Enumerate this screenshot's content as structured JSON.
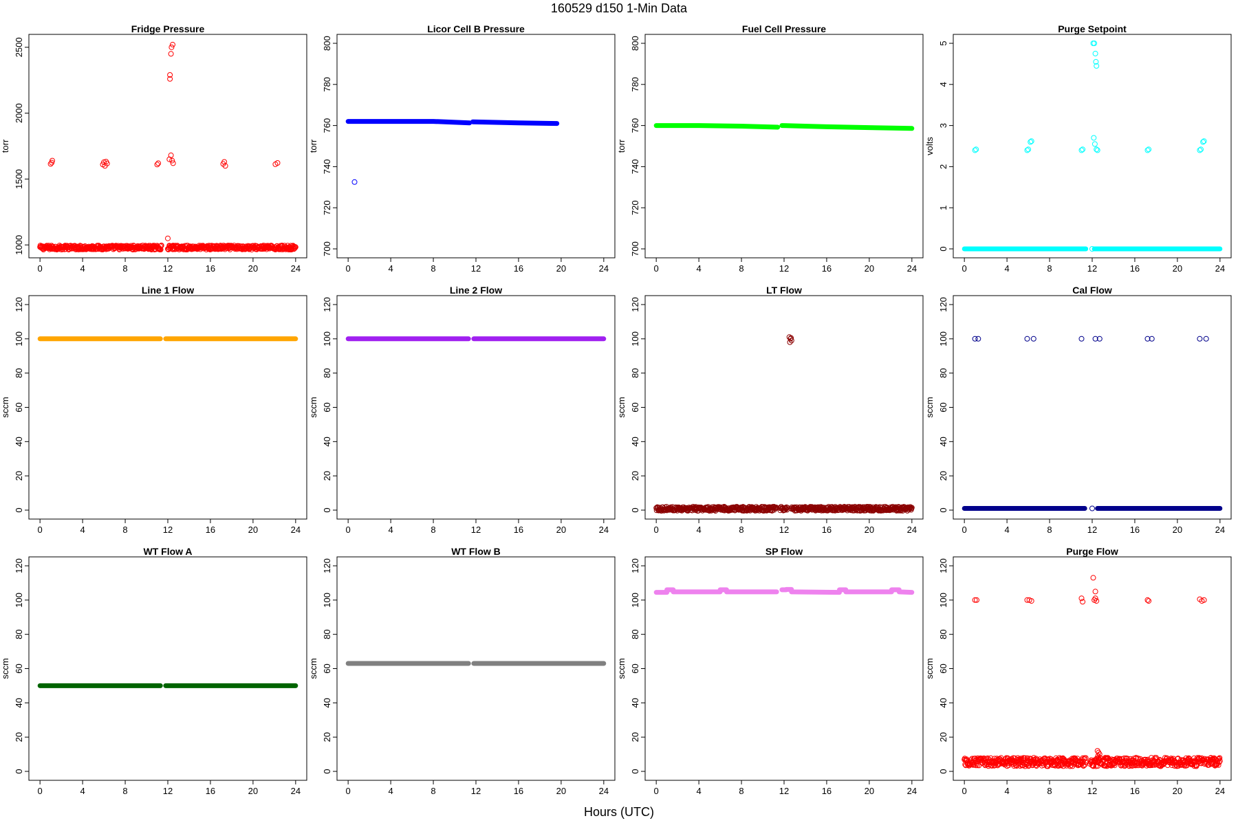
{
  "figure": {
    "title": "160529   d150   1-Min Data",
    "xlabel": "Hours (UTC)"
  },
  "chart_data": [
    {
      "type": "scatter",
      "title": "Fridge Pressure",
      "xlabel": "",
      "ylabel": "torr",
      "xlim": [
        0,
        24
      ],
      "ylim": [
        970,
        2530
      ],
      "xticks": [
        0,
        4,
        8,
        12,
        16,
        20,
        24
      ],
      "yticks": [
        1000,
        1500,
        2000,
        2500
      ],
      "series": [
        {
          "color": "#ff0000",
          "style": "open",
          "baseline": {
            "segments": [
              [
                0,
                11.4
              ],
              [
                12.0,
                24
              ]
            ],
            "y": 980,
            "jitter": 16
          },
          "points": [
            [
              1.0,
              1615
            ],
            [
              1.1,
              1625
            ],
            [
              1.15,
              1640
            ],
            [
              5.9,
              1610
            ],
            [
              6.0,
              1628
            ],
            [
              6.1,
              1600
            ],
            [
              6.2,
              1632
            ],
            [
              6.3,
              1618
            ],
            [
              11.0,
              1610
            ],
            [
              11.1,
              1620
            ],
            [
              12.15,
              1650
            ],
            [
              12.2,
              2260
            ],
            [
              12.2,
              2290
            ],
            [
              12.3,
              2450
            ],
            [
              12.35,
              2500
            ],
            [
              12.45,
              2520
            ],
            [
              12.3,
              1680
            ],
            [
              12.4,
              1640
            ],
            [
              12.5,
              1620
            ],
            [
              12.0,
              1050
            ],
            [
              17.2,
              1615
            ],
            [
              17.3,
              1630
            ],
            [
              17.4,
              1600
            ],
            [
              22.1,
              1612
            ],
            [
              22.3,
              1622
            ]
          ]
        }
      ]
    },
    {
      "type": "scatter",
      "title": "Licor Cell B Pressure",
      "xlabel": "",
      "ylabel": "torr",
      "xlim": [
        0,
        24
      ],
      "ylim": [
        700,
        800
      ],
      "xticks": [
        0,
        4,
        8,
        12,
        16,
        20,
        24
      ],
      "yticks": [
        700,
        720,
        740,
        760,
        780,
        800
      ],
      "series": [
        {
          "color": "#0000ff",
          "style": "line",
          "lines": [
            {
              "x": [
                0,
                4,
                8,
                11.4
              ],
              "y": [
                762,
                762,
                762,
                761.3
              ]
            },
            {
              "x": [
                11.7,
                16,
                19.6
              ],
              "y": [
                761.8,
                761.3,
                761
              ]
            }
          ],
          "points": [
            [
              0.6,
              732.5
            ]
          ]
        }
      ]
    },
    {
      "type": "scatter",
      "title": "Fuel Cell Pressure",
      "xlabel": "",
      "ylabel": "torr",
      "xlim": [
        0,
        24
      ],
      "ylim": [
        700,
        800
      ],
      "xticks": [
        0,
        4,
        8,
        12,
        16,
        20,
        24
      ],
      "yticks": [
        700,
        720,
        740,
        760,
        780,
        800
      ],
      "series": [
        {
          "color": "#00ff00",
          "style": "line",
          "lines": [
            {
              "x": [
                0,
                4,
                8,
                11.4
              ],
              "y": [
                760,
                760,
                759.7,
                759.2
              ]
            },
            {
              "x": [
                11.8,
                16,
                20,
                24
              ],
              "y": [
                760,
                759.4,
                759,
                758.6
              ]
            }
          ],
          "points": []
        }
      ]
    },
    {
      "type": "scatter",
      "title": "Purge Setpoint",
      "xlabel": "",
      "ylabel": "volts",
      "xlim": [
        0,
        24
      ],
      "ylim": [
        0,
        5
      ],
      "xticks": [
        0,
        4,
        8,
        12,
        16,
        20,
        24
      ],
      "yticks": [
        0,
        1,
        2,
        3,
        4,
        5
      ],
      "series": [
        {
          "color": "#00ffff",
          "style": "line",
          "lines": [
            {
              "x": [
                0,
                11.4
              ],
              "y": [
                0,
                0
              ]
            },
            {
              "x": [
                12.2,
                24
              ],
              "y": [
                0,
                0
              ]
            }
          ],
          "points": [
            [
              1.0,
              2.4
            ],
            [
              1.1,
              2.42
            ],
            [
              5.9,
              2.4
            ],
            [
              6.0,
              2.42
            ],
            [
              6.2,
              2.6
            ],
            [
              6.3,
              2.62
            ],
            [
              11.0,
              2.4
            ],
            [
              11.1,
              2.42
            ],
            [
              12.0,
              0.0
            ],
            [
              12.1,
              5.0
            ],
            [
              12.2,
              5.0
            ],
            [
              12.3,
              4.75
            ],
            [
              12.35,
              4.55
            ],
            [
              12.4,
              4.45
            ],
            [
              12.15,
              2.7
            ],
            [
              12.25,
              2.55
            ],
            [
              12.4,
              2.42
            ],
            [
              12.5,
              2.4
            ],
            [
              17.2,
              2.4
            ],
            [
              17.3,
              2.42
            ],
            [
              22.1,
              2.4
            ],
            [
              22.2,
              2.42
            ],
            [
              22.4,
              2.6
            ],
            [
              22.5,
              2.62
            ]
          ]
        }
      ]
    },
    {
      "type": "scatter",
      "title": "Line 1 Flow",
      "xlabel": "",
      "ylabel": "sccm",
      "xlim": [
        0,
        24
      ],
      "ylim": [
        0,
        120
      ],
      "xticks": [
        0,
        4,
        8,
        12,
        16,
        20,
        24
      ],
      "yticks": [
        0,
        20,
        40,
        60,
        80,
        100,
        120
      ],
      "series": [
        {
          "color": "#ffa500",
          "style": "line",
          "lines": [
            {
              "x": [
                0,
                11.3
              ],
              "y": [
                100,
                100
              ]
            },
            {
              "x": [
                11.8,
                24
              ],
              "y": [
                100,
                100
              ]
            }
          ],
          "points": []
        }
      ]
    },
    {
      "type": "scatter",
      "title": "Line 2 Flow",
      "xlabel": "",
      "ylabel": "sccm",
      "xlim": [
        0,
        24
      ],
      "ylim": [
        0,
        120
      ],
      "xticks": [
        0,
        4,
        8,
        12,
        16,
        20,
        24
      ],
      "yticks": [
        0,
        20,
        40,
        60,
        80,
        100,
        120
      ],
      "series": [
        {
          "color": "#a020f0",
          "style": "line",
          "lines": [
            {
              "x": [
                0,
                11.3
              ],
              "y": [
                100,
                100
              ]
            },
            {
              "x": [
                11.8,
                24
              ],
              "y": [
                100,
                100
              ]
            }
          ],
          "points": []
        }
      ]
    },
    {
      "type": "scatter",
      "title": "LT Flow",
      "xlabel": "",
      "ylabel": "sccm",
      "xlim": [
        0,
        24
      ],
      "ylim": [
        0,
        120
      ],
      "xticks": [
        0,
        4,
        8,
        12,
        16,
        20,
        24
      ],
      "yticks": [
        0,
        20,
        40,
        60,
        80,
        100,
        120
      ],
      "series": [
        {
          "color": "#8b0000",
          "style": "open",
          "baseline": {
            "segments": [
              [
                0,
                11.3
              ],
              [
                11.6,
                12.3
              ],
              [
                12.7,
                24
              ]
            ],
            "y": 0.8,
            "jitter": 1.2
          },
          "points": [
            [
              12.5,
              101
            ],
            [
              12.6,
              100
            ],
            [
              12.7,
              99
            ],
            [
              12.55,
              98
            ],
            [
              12.65,
              100.5
            ]
          ]
        }
      ]
    },
    {
      "type": "scatter",
      "title": "Cal Flow",
      "xlabel": "",
      "ylabel": "sccm",
      "xlim": [
        0,
        24
      ],
      "ylim": [
        0,
        120
      ],
      "xticks": [
        0,
        4,
        8,
        12,
        16,
        20,
        24
      ],
      "yticks": [
        0,
        20,
        40,
        60,
        80,
        100,
        120
      ],
      "series": [
        {
          "color": "#00008b",
          "style": "line",
          "lines": [
            {
              "x": [
                0,
                11.3
              ],
              "y": [
                1,
                1
              ]
            },
            {
              "x": [
                12.5,
                24
              ],
              "y": [
                1,
                1
              ]
            }
          ],
          "points": [
            [
              1.0,
              100
            ],
            [
              1.3,
              100
            ],
            [
              5.9,
              100
            ],
            [
              6.5,
              100
            ],
            [
              11.0,
              100
            ],
            [
              12.3,
              100
            ],
            [
              12.7,
              100
            ],
            [
              17.2,
              100
            ],
            [
              17.6,
              100
            ],
            [
              22.1,
              100
            ],
            [
              22.7,
              100
            ],
            [
              12.0,
              1
            ]
          ]
        }
      ]
    },
    {
      "type": "scatter",
      "title": "WT Flow A",
      "xlabel": "",
      "ylabel": "sccm",
      "xlim": [
        0,
        24
      ],
      "ylim": [
        0,
        120
      ],
      "xticks": [
        0,
        4,
        8,
        12,
        16,
        20,
        24
      ],
      "yticks": [
        0,
        20,
        40,
        60,
        80,
        100,
        120
      ],
      "series": [
        {
          "color": "#006400",
          "style": "line",
          "lines": [
            {
              "x": [
                0,
                11.3
              ],
              "y": [
                50,
                50
              ]
            },
            {
              "x": [
                11.8,
                24
              ],
              "y": [
                50,
                50
              ]
            }
          ],
          "points": []
        }
      ]
    },
    {
      "type": "scatter",
      "title": "WT Flow B",
      "xlabel": "",
      "ylabel": "sccm",
      "xlim": [
        0,
        24
      ],
      "ylim": [
        0,
        120
      ],
      "xticks": [
        0,
        4,
        8,
        12,
        16,
        20,
        24
      ],
      "yticks": [
        0,
        20,
        40,
        60,
        80,
        100,
        120
      ],
      "series": [
        {
          "color": "#808080",
          "style": "line",
          "lines": [
            {
              "x": [
                0,
                11.3
              ],
              "y": [
                63,
                63
              ]
            },
            {
              "x": [
                11.8,
                24
              ],
              "y": [
                63,
                63
              ]
            }
          ],
          "points": []
        }
      ]
    },
    {
      "type": "scatter",
      "title": "SP Flow",
      "xlabel": "",
      "ylabel": "sccm",
      "xlim": [
        0,
        24
      ],
      "ylim": [
        0,
        120
      ],
      "xticks": [
        0,
        4,
        8,
        12,
        16,
        20,
        24
      ],
      "yticks": [
        0,
        20,
        40,
        60,
        80,
        100,
        120
      ],
      "series": [
        {
          "color": "#ee82ee",
          "style": "line",
          "lines": [
            {
              "x": [
                0,
                1.0,
                1.0,
                1.6,
                1.6,
                6.0,
                6.0,
                6.6,
                6.6,
                11.3
              ],
              "y": [
                104.5,
                104.5,
                106,
                106,
                104.8,
                104.8,
                106,
                106,
                104.8,
                104.8
              ]
            },
            {
              "x": [
                11.8,
                12.2,
                12.2,
                12.7,
                12.7,
                17.2,
                17.2,
                17.8,
                17.8,
                22.1,
                22.1,
                22.8,
                22.8,
                24
              ],
              "y": [
                106,
                106,
                106.2,
                106.2,
                104.8,
                104.5,
                106,
                106,
                104.8,
                104.8,
                106,
                106,
                104.8,
                104.5
              ]
            }
          ],
          "points": []
        }
      ]
    },
    {
      "type": "scatter",
      "title": "Purge Flow",
      "xlabel": "",
      "ylabel": "sccm",
      "xlim": [
        0,
        24
      ],
      "ylim": [
        0,
        120
      ],
      "xticks": [
        0,
        4,
        8,
        12,
        16,
        20,
        24
      ],
      "yticks": [
        0,
        20,
        40,
        60,
        80,
        100,
        120
      ],
      "series": [
        {
          "color": "#ff0000",
          "style": "open",
          "baseline": {
            "segments": [
              [
                0,
                11.4
              ],
              [
                11.8,
                12.5
              ],
              [
                12.5,
                24
              ]
            ],
            "y": 5.5,
            "jitter": 2.5
          },
          "points": [
            [
              1.0,
              100
            ],
            [
              1.15,
              100
            ],
            [
              5.9,
              100
            ],
            [
              6.1,
              100
            ],
            [
              6.3,
              99.5
            ],
            [
              11.0,
              101
            ],
            [
              11.1,
              99
            ],
            [
              12.2,
              100
            ],
            [
              12.3,
              101
            ],
            [
              12.4,
              99.5
            ],
            [
              12.1,
              113
            ],
            [
              12.3,
              105
            ],
            [
              17.2,
              100
            ],
            [
              17.3,
              99.5
            ],
            [
              22.1,
              100.5
            ],
            [
              22.3,
              99.5
            ],
            [
              22.5,
              100
            ],
            [
              12.5,
              12
            ],
            [
              12.6,
              11
            ],
            [
              12.7,
              10
            ],
            [
              12.55,
              9
            ]
          ]
        }
      ]
    }
  ]
}
